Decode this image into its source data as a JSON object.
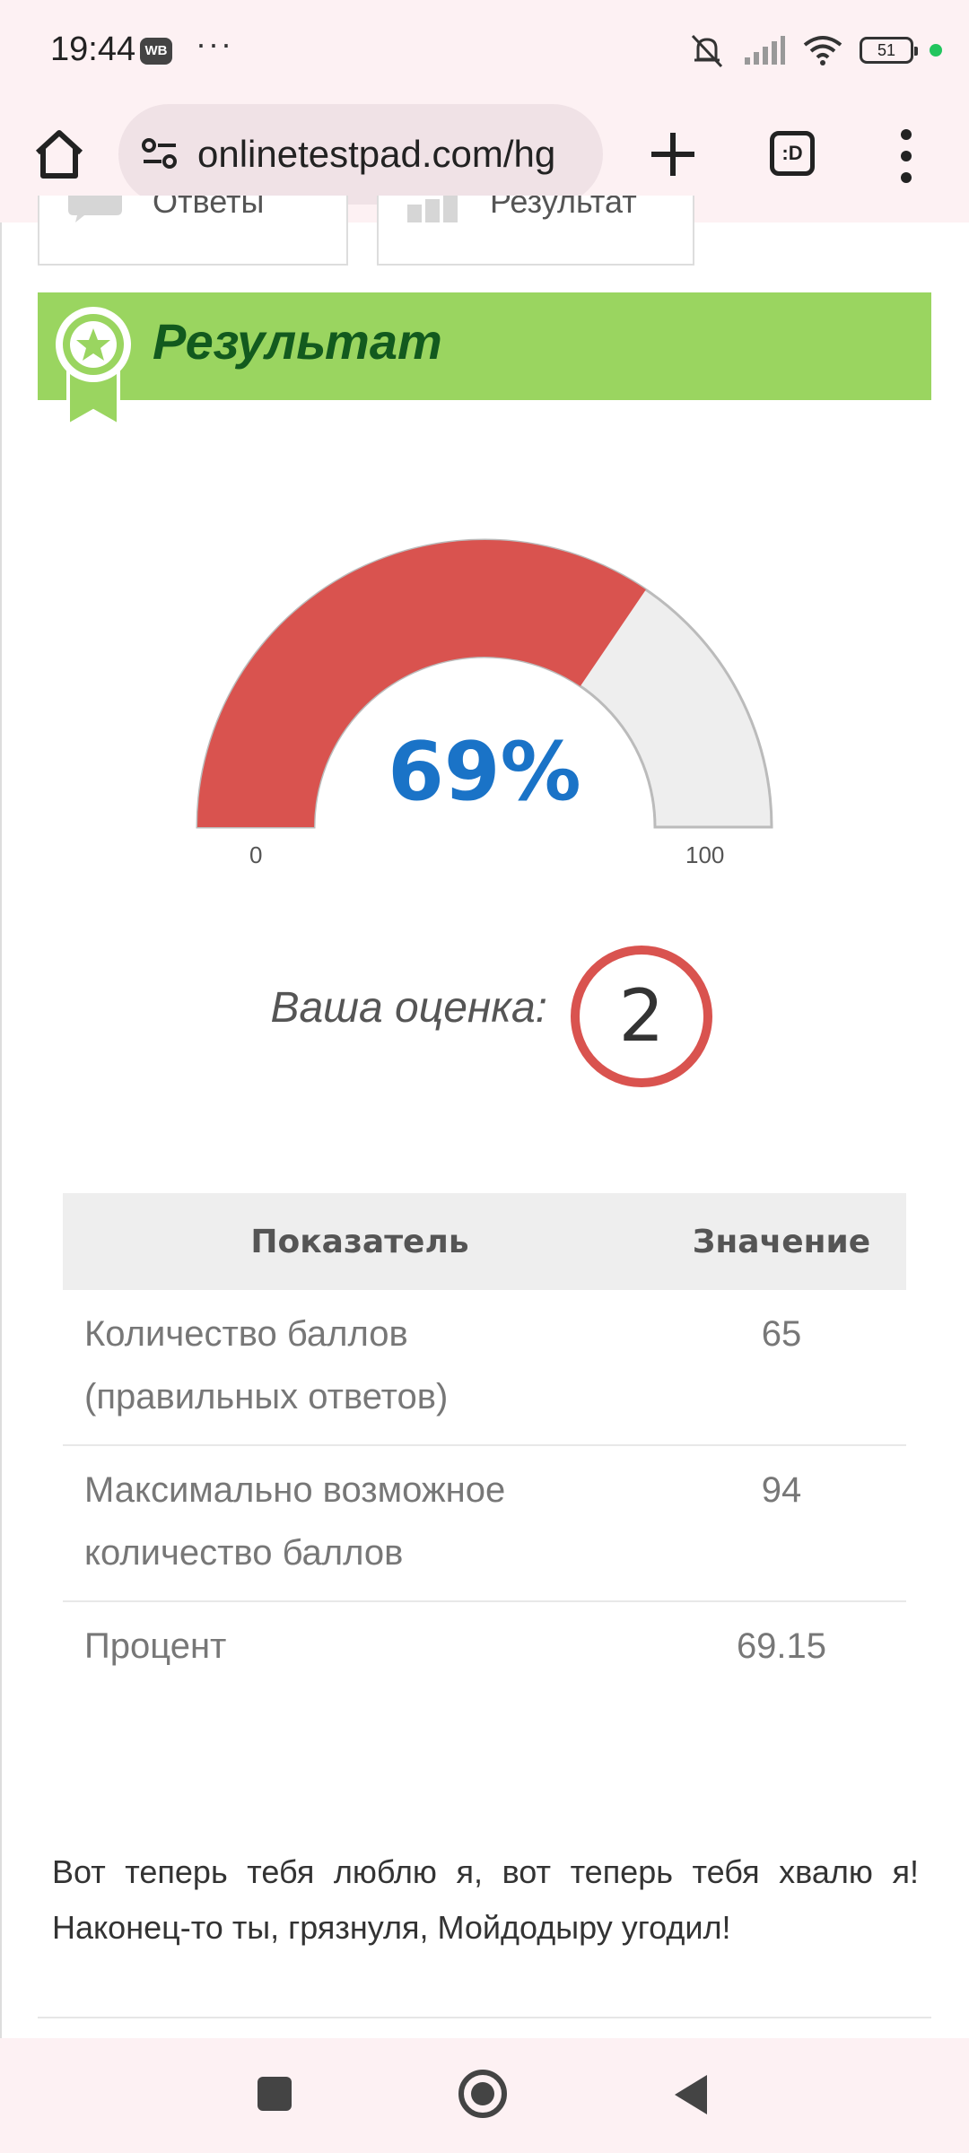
{
  "status_bar": {
    "time": "19:44",
    "badge": "WB",
    "dots": "···",
    "battery": "51"
  },
  "browser": {
    "url": "onlinetestpad.com/hg",
    "tabs_label": ":D"
  },
  "page": {
    "tabs": [
      {
        "label": "Ответы"
      },
      {
        "label": "Результат"
      }
    ],
    "banner_title": "Результат",
    "gauge": {
      "value_percent": 69,
      "value_label": "69%",
      "min_label": "0",
      "max_label": "100",
      "fill_color": "#d9534f",
      "track_color": "#eeeeee"
    },
    "grade": {
      "label": "Ваша оценка:",
      "value": "2"
    },
    "table": {
      "headers": [
        "Показатель",
        "Значение"
      ],
      "rows": [
        {
          "label_line1": "Количество баллов",
          "label_line2": "(правильных ответов)",
          "value": "65"
        },
        {
          "label_line1": "Максимально возможное",
          "label_line2": "количество баллов",
          "value": "94"
        },
        {
          "label_line1": "Процент",
          "label_line2": "",
          "value": "69.15"
        }
      ]
    },
    "quote": "Вот теперь тебя люблю я, вот теперь тебя хвалю я! Наконец-то ты, грязнуля, Мойдодыру угодил!"
  }
}
